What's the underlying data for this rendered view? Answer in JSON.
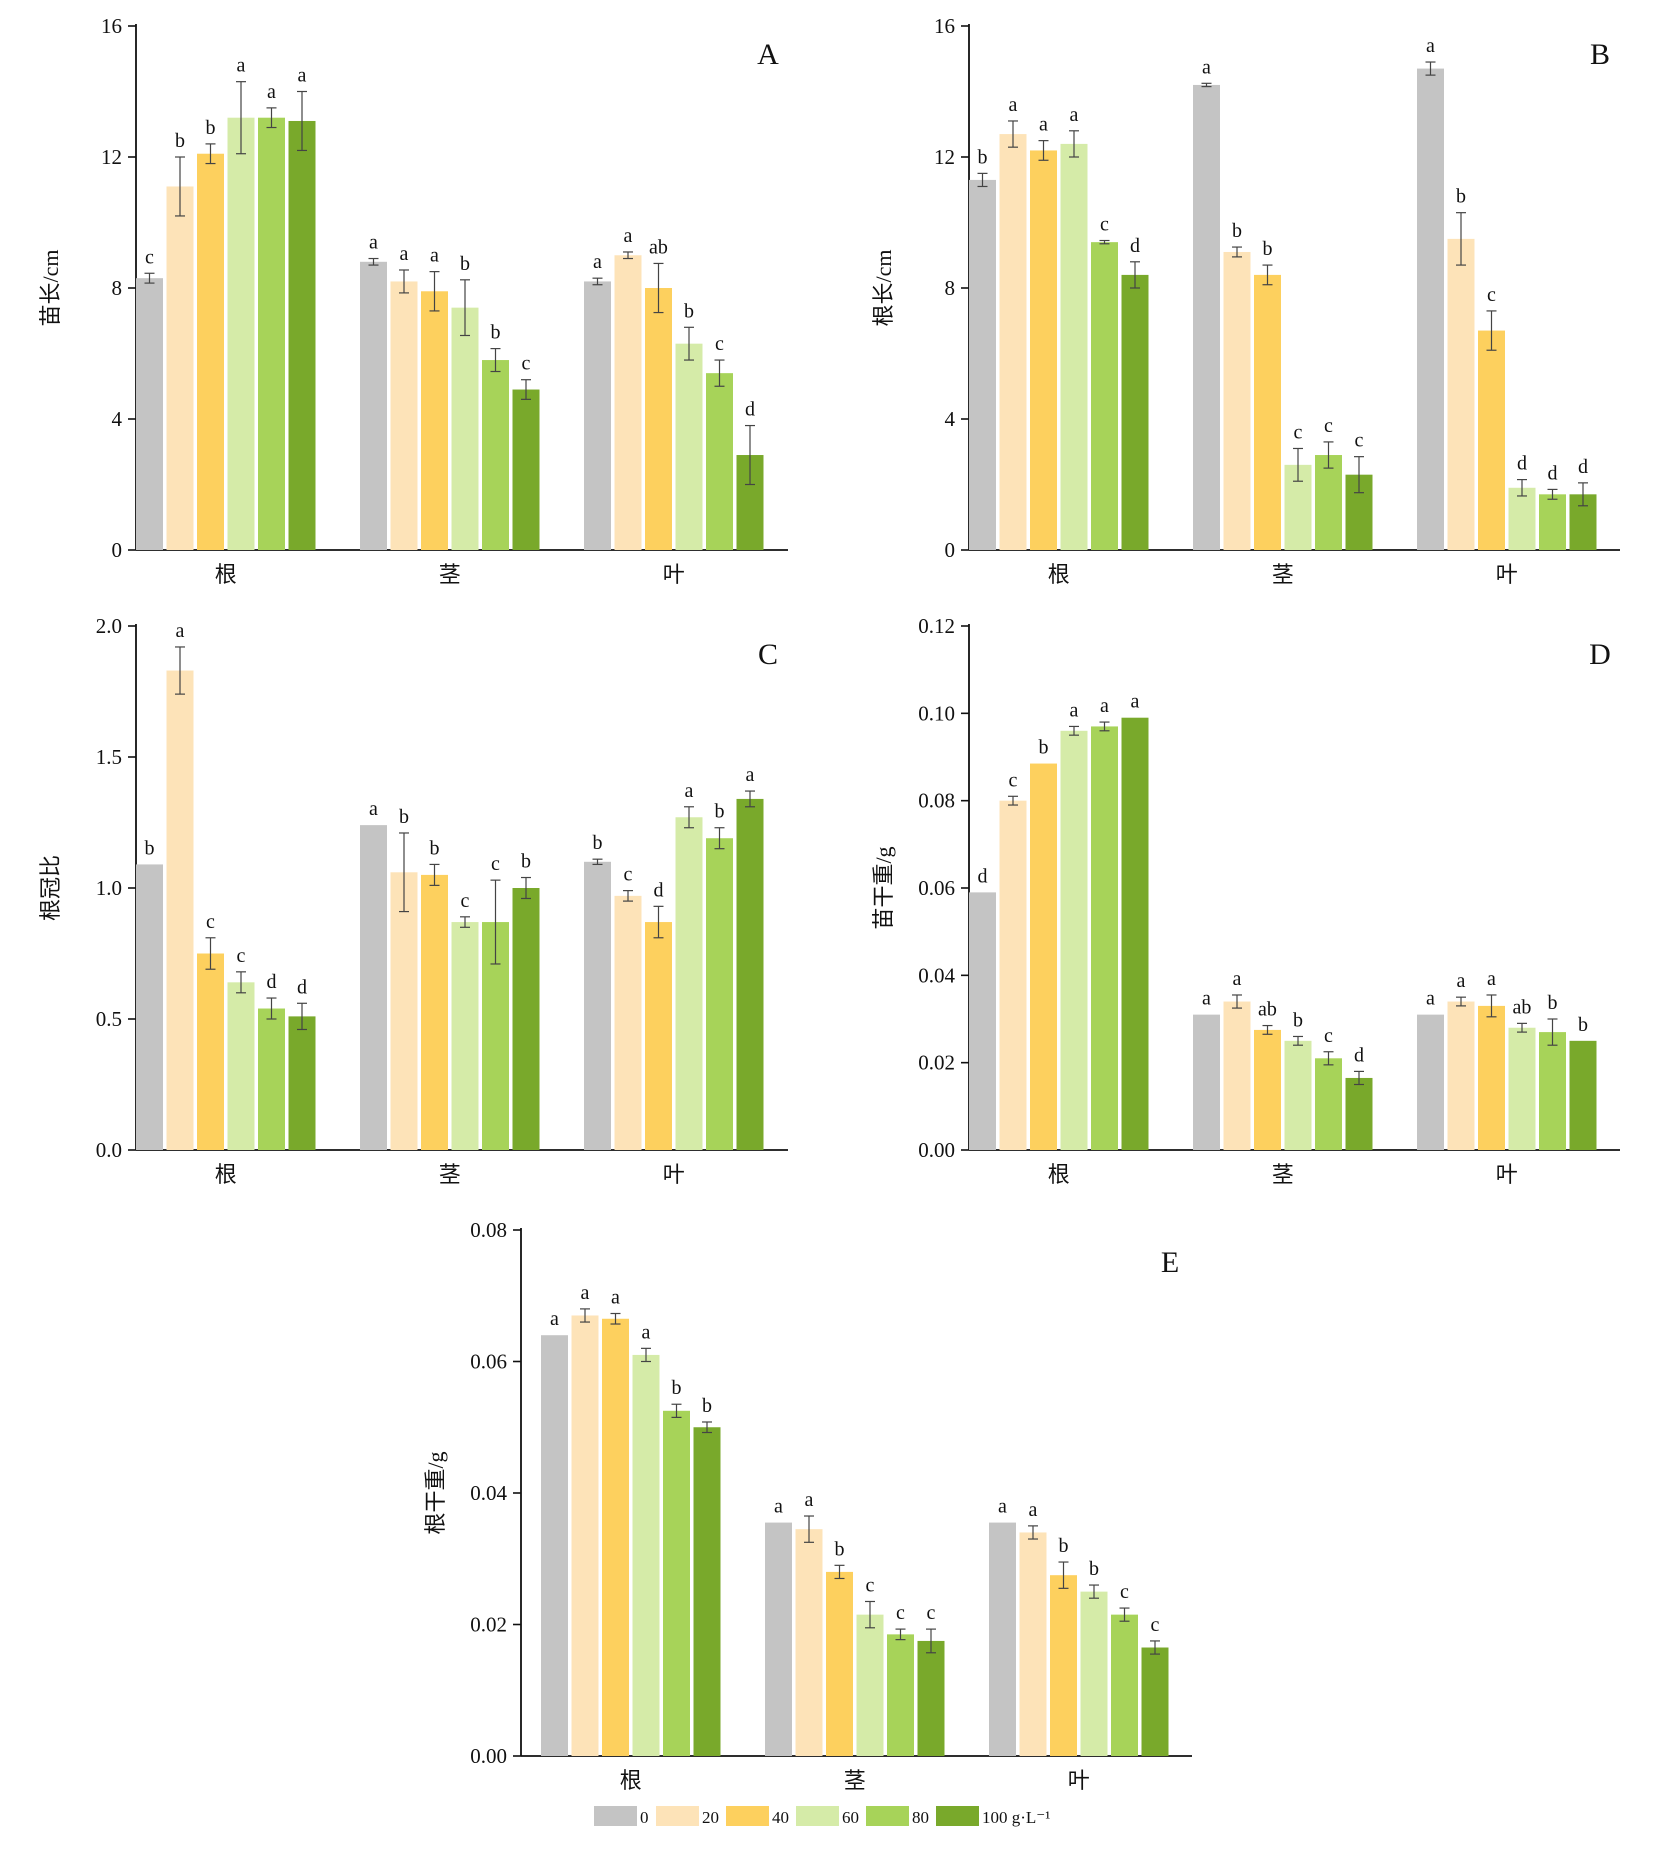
{
  "colors": [
    "#c4c4c4",
    "#fde3b8",
    "#fdd05e",
    "#d5eba8",
    "#a7d359",
    "#79a92b"
  ],
  "legend": [
    "0",
    "20",
    "40",
    "60",
    "80",
    "100 g·L⁻¹"
  ],
  "chart_data": [
    {
      "type": "bar",
      "panel": "A",
      "ylabel": "苗长/cm",
      "ylim": [
        0,
        16
      ],
      "yticks": [
        "0",
        "4",
        "8",
        "12",
        "16"
      ],
      "categories": [
        "根",
        "茎",
        "叶"
      ],
      "series": [
        {
          "name": "0",
          "values": [
            8.3,
            8.8,
            8.2
          ],
          "errors": [
            0.15,
            0.1,
            0.1
          ],
          "sig": [
            "c",
            "a",
            "a"
          ]
        },
        {
          "name": "20",
          "values": [
            11.1,
            8.2,
            9.0
          ],
          "errors": [
            0.9,
            0.35,
            0.1
          ],
          "sig": [
            "b",
            "a",
            "a"
          ]
        },
        {
          "name": "40",
          "values": [
            12.1,
            7.9,
            8.0
          ],
          "errors": [
            0.3,
            0.6,
            0.75
          ],
          "sig": [
            "b",
            "a",
            "ab"
          ]
        },
        {
          "name": "60",
          "values": [
            13.2,
            7.4,
            6.3
          ],
          "errors": [
            1.1,
            0.85,
            0.5
          ],
          "sig": [
            "a",
            "b",
            "b"
          ]
        },
        {
          "name": "80",
          "values": [
            13.2,
            5.8,
            5.4
          ],
          "errors": [
            0.3,
            0.35,
            0.4
          ],
          "sig": [
            "a",
            "b",
            "c"
          ]
        },
        {
          "name": "100 g·L⁻¹",
          "values": [
            13.1,
            4.9,
            2.9
          ],
          "errors": [
            0.9,
            0.3,
            0.9
          ],
          "sig": [
            "a",
            "c",
            "d"
          ]
        }
      ]
    },
    {
      "type": "bar",
      "panel": "B",
      "ylabel": "根长/cm",
      "ylim": [
        0,
        16
      ],
      "yticks": [
        "0",
        "4",
        "8",
        "12",
        "16"
      ],
      "categories": [
        "根",
        "茎",
        "叶"
      ],
      "series": [
        {
          "name": "0",
          "values": [
            11.3,
            14.2,
            14.7
          ],
          "errors": [
            0.2,
            0.05,
            0.2
          ],
          "sig": [
            "b",
            "a",
            "a"
          ]
        },
        {
          "name": "20",
          "values": [
            12.7,
            9.1,
            9.5
          ],
          "errors": [
            0.4,
            0.15,
            0.8
          ],
          "sig": [
            "a",
            "b",
            "b"
          ]
        },
        {
          "name": "40",
          "values": [
            12.2,
            8.4,
            6.7
          ],
          "errors": [
            0.3,
            0.3,
            0.6
          ],
          "sig": [
            "a",
            "b",
            "c"
          ]
        },
        {
          "name": "60",
          "values": [
            12.4,
            2.6,
            1.9
          ],
          "errors": [
            0.4,
            0.5,
            0.25
          ],
          "sig": [
            "a",
            "c",
            "d"
          ]
        },
        {
          "name": "80",
          "values": [
            9.4,
            2.9,
            1.7
          ],
          "errors": [
            0.05,
            0.4,
            0.15
          ],
          "sig": [
            "c",
            "c",
            "d"
          ]
        },
        {
          "name": "100 g·L⁻¹",
          "values": [
            8.4,
            2.3,
            1.7
          ],
          "errors": [
            0.4,
            0.55,
            0.35
          ],
          "sig": [
            "d",
            "c",
            "d"
          ]
        }
      ]
    },
    {
      "type": "bar",
      "panel": "C",
      "ylabel": "根冠比",
      "ylim": [
        0,
        2
      ],
      "yticks": [
        "0.0",
        "0.5",
        "1.0",
        "1.5",
        "2.0"
      ],
      "categories": [
        "根",
        "茎",
        "叶"
      ],
      "series": [
        {
          "name": "0",
          "values": [
            1.09,
            1.24,
            1.1
          ],
          "errors": [
            0,
            0,
            0.01
          ],
          "sig": [
            "b",
            "a",
            "b"
          ]
        },
        {
          "name": "20",
          "values": [
            1.83,
            1.06,
            0.97
          ],
          "errors": [
            0.09,
            0.15,
            0.02
          ],
          "sig": [
            "a",
            "b",
            "c"
          ]
        },
        {
          "name": "40",
          "values": [
            0.75,
            1.05,
            0.87
          ],
          "errors": [
            0.06,
            0.04,
            0.06
          ],
          "sig": [
            "c",
            "b",
            "d"
          ]
        },
        {
          "name": "60",
          "values": [
            0.64,
            0.87,
            1.27
          ],
          "errors": [
            0.04,
            0.02,
            0.04
          ],
          "sig": [
            "c",
            "c",
            "a"
          ]
        },
        {
          "name": "80",
          "values": [
            0.54,
            0.87,
            1.19
          ],
          "errors": [
            0.04,
            0.16,
            0.04
          ],
          "sig": [
            "d",
            "c",
            "b"
          ]
        },
        {
          "name": "100 g·L⁻¹",
          "values": [
            0.51,
            1.0,
            1.34
          ],
          "errors": [
            0.05,
            0.04,
            0.03
          ],
          "sig": [
            "d",
            "b",
            "a"
          ]
        }
      ]
    },
    {
      "type": "bar",
      "panel": "D",
      "ylabel": "苗干重/g",
      "ylim": [
        0,
        0.12
      ],
      "yticks": [
        "0.00",
        "0.02",
        "0.04",
        "0.06",
        "0.08",
        "0.10",
        "0.12"
      ],
      "categories": [
        "根",
        "茎",
        "叶"
      ],
      "series": [
        {
          "name": "0",
          "values": [
            0.059,
            0.031,
            0.031
          ],
          "errors": [
            0,
            0,
            0
          ],
          "sig": [
            "d",
            "a",
            "a"
          ]
        },
        {
          "name": "20",
          "values": [
            0.08,
            0.034,
            0.034
          ],
          "errors": [
            0.001,
            0.0015,
            0.001
          ],
          "sig": [
            "c",
            "a",
            "a"
          ]
        },
        {
          "name": "40",
          "values": [
            0.0885,
            0.0275,
            0.033
          ],
          "errors": [
            0,
            0.001,
            0.0025
          ],
          "sig": [
            "b",
            "ab",
            "a"
          ]
        },
        {
          "name": "60",
          "values": [
            0.096,
            0.025,
            0.028
          ],
          "errors": [
            0.001,
            0.001,
            0.001
          ],
          "sig": [
            "a",
            "b",
            "ab"
          ]
        },
        {
          "name": "80",
          "values": [
            0.097,
            0.021,
            0.027
          ],
          "errors": [
            0.001,
            0.0015,
            0.003
          ],
          "sig": [
            "a",
            "c",
            "b"
          ]
        },
        {
          "name": "100 g·L⁻¹",
          "values": [
            0.099,
            0.0165,
            0.025
          ],
          "errors": [
            0,
            0.0015,
            0
          ],
          "sig": [
            "a",
            "d",
            "b"
          ]
        }
      ]
    },
    {
      "type": "bar",
      "panel": "E",
      "ylabel": "根干重/g",
      "ylim": [
        0,
        0.08
      ],
      "yticks": [
        "0.00",
        "0.02",
        "0.04",
        "0.06",
        "0.08"
      ],
      "categories": [
        "根",
        "茎",
        "叶"
      ],
      "series": [
        {
          "name": "0",
          "values": [
            0.064,
            0.0355,
            0.0355
          ],
          "errors": [
            0,
            0,
            0
          ],
          "sig": [
            "a",
            "a",
            "a"
          ]
        },
        {
          "name": "20",
          "values": [
            0.067,
            0.0345,
            0.034
          ],
          "errors": [
            0.001,
            0.002,
            0.001
          ],
          "sig": [
            "a",
            "a",
            "a"
          ]
        },
        {
          "name": "40",
          "values": [
            0.0665,
            0.028,
            0.0275
          ],
          "errors": [
            0.0008,
            0.001,
            0.002
          ],
          "sig": [
            "a",
            "b",
            "b"
          ]
        },
        {
          "name": "60",
          "values": [
            0.061,
            0.0215,
            0.025
          ],
          "errors": [
            0.001,
            0.002,
            0.001
          ],
          "sig": [
            "a",
            "c",
            "b"
          ]
        },
        {
          "name": "80",
          "values": [
            0.0525,
            0.0185,
            0.0215
          ],
          "errors": [
            0.001,
            0.0008,
            0.001
          ],
          "sig": [
            "b",
            "c",
            "c"
          ]
        },
        {
          "name": "100 g·L⁻¹",
          "values": [
            0.05,
            0.0175,
            0.0165
          ],
          "errors": [
            0.0008,
            0.0018,
            0.001
          ],
          "sig": [
            "b",
            "c",
            "c"
          ]
        }
      ]
    }
  ]
}
